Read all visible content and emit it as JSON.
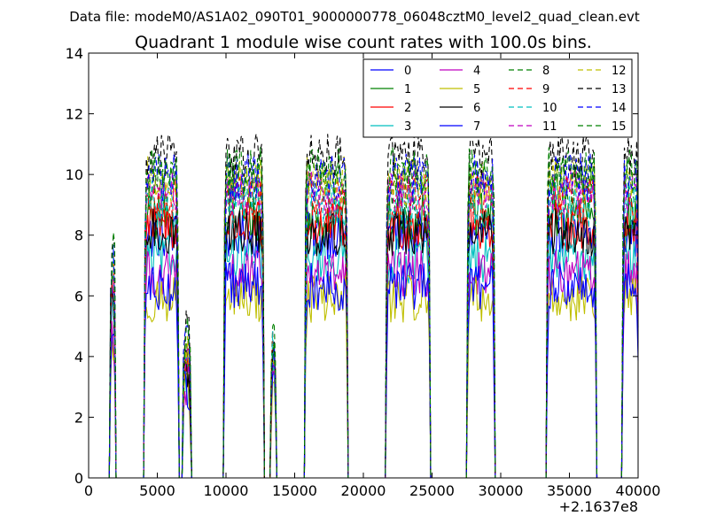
{
  "suptitle": "Data file: modeM0/AS1A02_090T01_9000000778_06048cztM0_level2_quad_clean.evt",
  "chart_data": {
    "type": "line",
    "title": "Quadrant 1 module wise count rates with 100.0s bins.",
    "xlabel": "",
    "ylabel": "",
    "x_offset_label": "+2.1637e8",
    "xlim": [
      0,
      40000
    ],
    "ylim": [
      0,
      14
    ],
    "x_ticks": [
      0,
      5000,
      10000,
      15000,
      20000,
      25000,
      30000,
      35000,
      40000
    ],
    "y_ticks": [
      0,
      2,
      4,
      6,
      8,
      10,
      12,
      14
    ],
    "grid": false,
    "legend_position": "top-right",
    "legend_columns": 4,
    "bin_size_s": 100,
    "observation_segments": [
      {
        "start": 1600,
        "end": 1900
      },
      {
        "start": 4100,
        "end": 6500
      },
      {
        "start": 6900,
        "end": 7400
      },
      {
        "start": 9900,
        "end": 12700
      },
      {
        "start": 13300,
        "end": 13600
      },
      {
        "start": 15800,
        "end": 18800
      },
      {
        "start": 21700,
        "end": 24800
      },
      {
        "start": 27600,
        "end": 29500
      },
      {
        "start": 33400,
        "end": 36900
      },
      {
        "start": 38900,
        "end": 40000
      }
    ],
    "series": [
      {
        "name": "0",
        "color": "#0000ff",
        "dash": "solid",
        "level": 8.0
      },
      {
        "name": "1",
        "color": "#008000",
        "dash": "solid",
        "level": 8.6
      },
      {
        "name": "2",
        "color": "#ff0000",
        "dash": "solid",
        "level": 8.3
      },
      {
        "name": "3",
        "color": "#00bfbf",
        "dash": "solid",
        "level": 7.2
      },
      {
        "name": "4",
        "color": "#bf00bf",
        "dash": "solid",
        "level": 6.7
      },
      {
        "name": "5",
        "color": "#bfbf00",
        "dash": "solid",
        "level": 5.9
      },
      {
        "name": "6",
        "color": "#000000",
        "dash": "solid",
        "level": 8.1
      },
      {
        "name": "7",
        "color": "#0000ff",
        "dash": "solid",
        "level": 6.3
      },
      {
        "name": "8",
        "color": "#008000",
        "dash": "dashed",
        "level": 9.6
      },
      {
        "name": "9",
        "color": "#ff0000",
        "dash": "dashed",
        "level": 9.2
      },
      {
        "name": "10",
        "color": "#00bfbf",
        "dash": "dashed",
        "level": 9.0
      },
      {
        "name": "11",
        "color": "#bf00bf",
        "dash": "dashed",
        "level": 9.4
      },
      {
        "name": "12",
        "color": "#bfbf00",
        "dash": "dashed",
        "level": 9.8
      },
      {
        "name": "13",
        "color": "#000000",
        "dash": "dashed",
        "level": 10.6
      },
      {
        "name": "14",
        "color": "#0000ff",
        "dash": "dashed",
        "level": 9.9
      },
      {
        "name": "15",
        "color": "#008000",
        "dash": "dashed",
        "level": 10.1
      }
    ]
  }
}
